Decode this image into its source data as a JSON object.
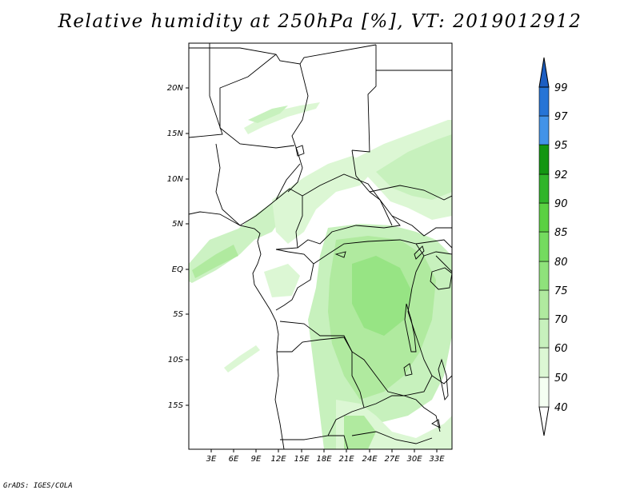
{
  "title": "Relative humidity at 250hPa [%], VT: 2019012912",
  "credit": "GrADS: IGES/COLA",
  "map": {
    "lat_labels": [
      "20N",
      "15N",
      "10N",
      "5N",
      "EQ",
      "5S",
      "10S",
      "15S"
    ],
    "lon_labels": [
      "3E",
      "6E",
      "9E",
      "12E",
      "15E",
      "18E",
      "21E",
      "24E",
      "27E",
      "30E",
      "33E"
    ]
  },
  "colorbar": {
    "labels": [
      "40",
      "50",
      "60",
      "70",
      "75",
      "80",
      "85",
      "90",
      "92",
      "95",
      "97",
      "99"
    ],
    "colors": [
      "#f5fff2",
      "#dcf7d4",
      "#c7f1bd",
      "#b0ea9f",
      "#8fe27b",
      "#74db5f",
      "#5bd143",
      "#30b52a",
      "#139612",
      "#4393e8",
      "#2674d6",
      "#1c5ec2"
    ]
  }
}
